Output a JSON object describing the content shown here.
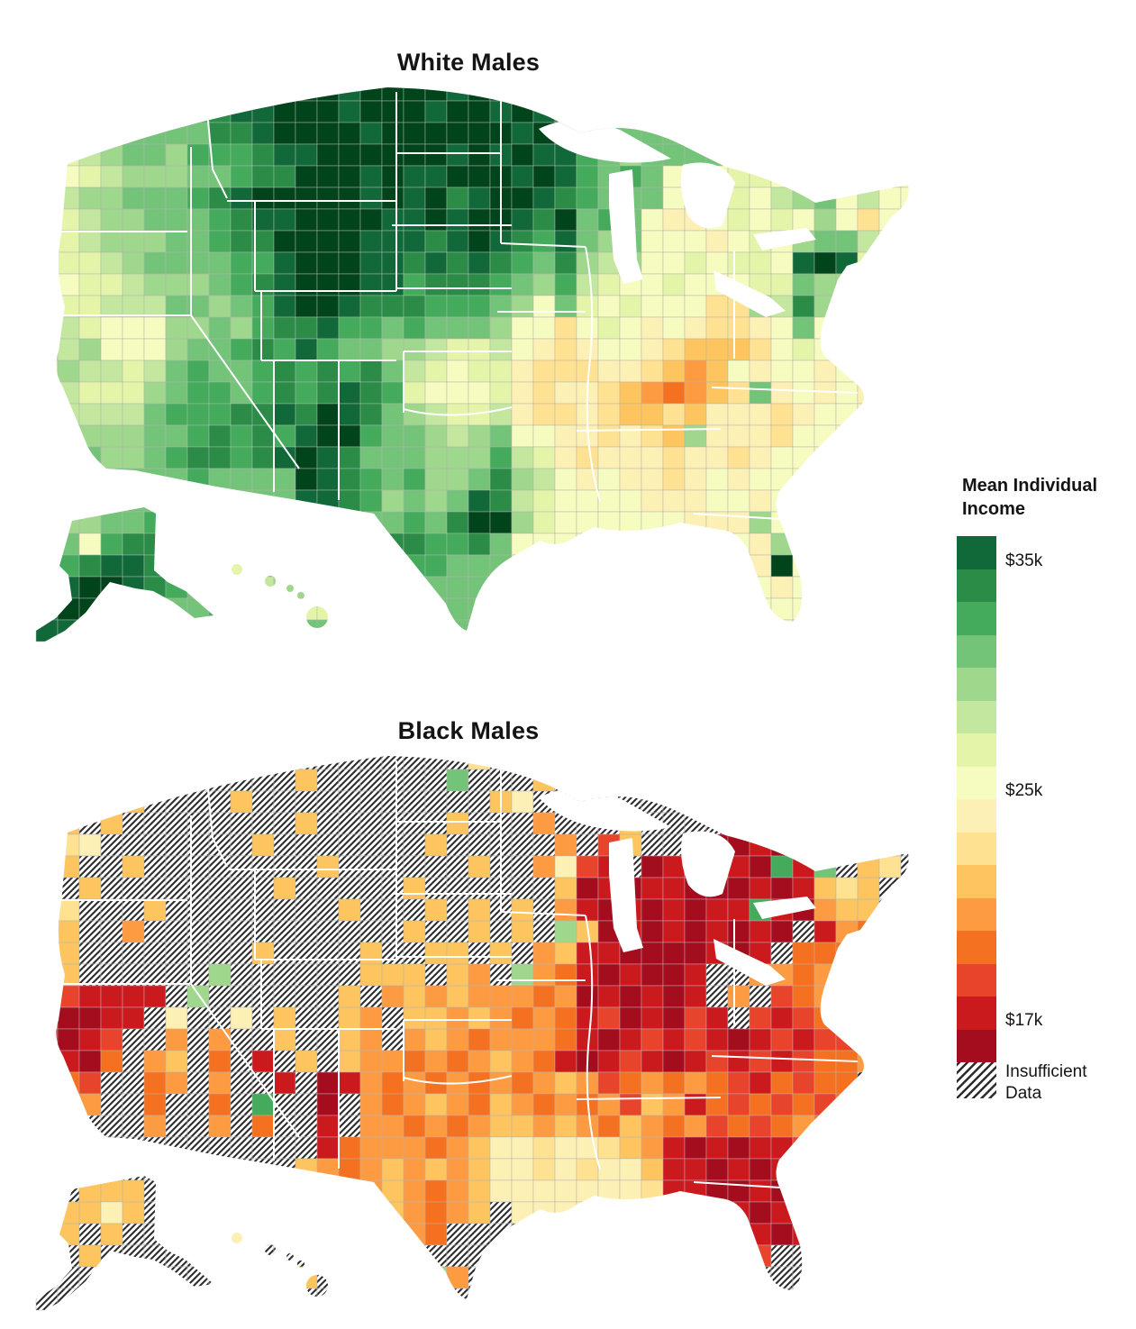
{
  "maps": [
    {
      "title": "White Males",
      "grid": [
        "66544534221100100001001024444444444444444",
        "85543443211000100010010124444444444446788",
        "75544444221000010000001013444444444447888",
        "77654453332110000001010113454444476777788",
        "88765554432200010110001013434888778677888",
        "76554443210000010102100123444898786548688",
        "87655444321100001101001204348998787858a88",
        "77655544322000011121012314548889878544688",
        "87765444433100011212123425658878778101788",
        "88776555432100011322234536788788877455888",
        "8776664454310012223334584787888aa56255788",
        "767888554532213343444588a878989aa98488888",
        "665888544323134455677689a9889abbba8788888",
        "75667643443232324678779aaa99abcb898898788",
        "66777543343232123788879a99abcdcba49898988",
        "56666433322120124567769aa9abbab999a988888",
        "45555443232310034456548899a9ab5999a888888",
        "4445543223210124445553679a999a99a98888888",
        "44444443444401234355425689899a98988888888",
        "44444444444411235454126788889998898888888",
        "45544334444442344342005788888899958888888",
        "44832234444444442233248888888989895888888",
        "43211234474444444334448888888888890888888",
        "41001234446554444244448888888888889888888",
        "10044444344477444444448888888888888888888",
        "11444444444444444444448888888888888888888"
      ]
    },
    {
      "title": "Black Males",
      "grid": [
        "9cbaXcXXXXbXXXXXXXXXaXXXXXXXXXXXXXXXXXXXX",
        "acaeXXbXXXXXbXXXXXX4XXXbXXXXXXXXXXXXXXaXX",
        "9eaXbXXXXbXXXXXXXXXXXb9XXXXXXXXXXXXXXaXbX",
        "abXbXXXXXXXXbXXXXXXbXXXcXXXbXXXXXXXXaXXaX",
        "Xa9XXXXXXXbXXXXXXXbXXXXXcXebXXfggfgfabXaX",
        "9bXXbXXXXXXXXbXXXXXXbXXc9efXgfgffg3f4XbaX",
        "aXbXXXXXXXXbXXXXXbXXXXXXbgfgffgggfgfbabXX",
        "9aXXXbXXXXXXXXbXXXbXbXbXcfgfgfgff3fgcbbXX",
        "XbXXcXXXXXXXXXXXXbXXbXbX5bgfgfgfgfgXfcdbXX",
        "abXXXXXXXXbXXXXbXXbbXbXcbffggggfgfXdddXXX",
        "9bXXXXXX5XXXXXXbbbXbcX5cdfgfggfXXccdcXXXX",
        "ceffffX5XXXXXXbXcbcbcccdcgfgfgfXcXedcXXXX",
        "dggffX9XX9XbXXbcXbbcbcdcdfegfgefXefedXXXX",
        "fgfeXXcXcXXbXXbcXcbcdcccdfgfefefgfefeedXX",
        "efgdXcbXdXfXbXbccdcdcbcdfgfefgfefefeddcXX",
        "cdeXXdcXcXXfXgfcdcdcdcdcbcedcdcdefdeddXXX",
        "cdcXXdXXdX3XXgXcdcbcdbcdcdcebcfdedededXXX",
        "bcXXXcXXcXdXXfXccdcdcbbcbcdbcdcededcdXXXX",
        "XXXXXXXXXXXXXfdcccdcb99a99abcfgfgffeeXXXX",
        "XXXXXXXXXXXXbcdcbcbcb99a9a99bffgfgfgfXXXX",
        "XXbbbXXXXXXXXcdcbcdcb9999999affggfgffXXXX",
        "Xbb9bXXXXXXXXXccbcdcbX9999999afgfgfgfXXXX",
        "XbXbXXXXX9XXXXXbccdXXXXXXXXX99fggfgfeXXXX",
        "XXbXXXXXXXXXXXXXXXXXXXXXXXXXXXfgfeXXXXXXX",
        "XXXXXXXXXXXXbXXXXX5cXXXXXXXXXXXeeXXXXXXXX",
        "XXXXXXXXXXXXXXXXXXXXXXXXXXXXXXXXXXXXXXXXX"
      ]
    }
  ],
  "palette": [
    "#00441b",
    "#11693a",
    "#2b8c47",
    "#44ab5d",
    "#73c378",
    "#9fd78c",
    "#c4e79f",
    "#e4f4a8",
    "#f6fbc0",
    "#fdf0b4",
    "#fee191",
    "#fdc45f",
    "#fd9b43",
    "#f47121",
    "#e8432b",
    "#ca1a1e",
    "#a30d1e"
  ],
  "legend": {
    "title_line1": "Mean Individual",
    "title_line2": "Income",
    "tick_labels": [
      {
        "text": "$35k",
        "at_segment_boundary": 1
      },
      {
        "text": "$25k",
        "at_segment_boundary": 8
      },
      {
        "text": "$17k",
        "at_segment_boundary": 15
      }
    ],
    "insufficient": {
      "line1": "Insufficient",
      "line2": "Data"
    }
  },
  "chart_data": {
    "type": "choropleth",
    "title": "Mean Individual Income",
    "groups": [
      "White Males",
      "Black Males"
    ],
    "scale": {
      "unit": "USD (thousands), mean individual income",
      "anchors": [
        {
          "label": "$35k",
          "value": 35000,
          "position": "upper boundary of green ramp"
        },
        {
          "label": "$25k",
          "value": 25000,
          "position": "middle (pale yellow)"
        },
        {
          "label": "$17k",
          "value": 17000,
          "position": "lower boundary near dark red"
        }
      ],
      "colors_high_to_low": [
        "#11693a",
        "#2b8c47",
        "#44ab5d",
        "#73c378",
        "#9fd78c",
        "#c4e79f",
        "#e4f4a8",
        "#f6fbc0",
        "#fdf0b4",
        "#fee191",
        "#fdc45f",
        "#fd9b43",
        "#f47121",
        "#e8432b",
        "#ca1a1e",
        "#a30d1e"
      ],
      "no_data_label": "Insufficient Data",
      "no_data_style": "black/white diagonal hatching"
    },
    "summary": "White Males map: high (dark green) incomes across northern plains/mountain west, NYC/NJ, west Texas; low (orange) in Appalachia (KY/TN/WV) and southeast. Black Males map: widespread insufficient data across plains/mountain west; predominantly red/dark-red (low income) in Midwest, Great Lakes, Northeast upstate, Southeast and Florida; scattered yellow/orange in west; rare green counties."
  }
}
